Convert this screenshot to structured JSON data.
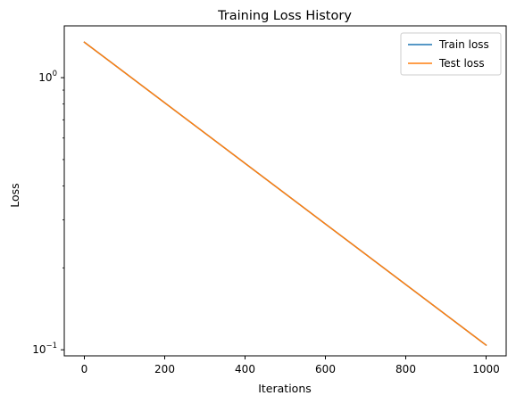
{
  "chart_data": {
    "type": "line",
    "title": "Training Loss History",
    "xlabel": "Iterations",
    "ylabel": "Loss",
    "y_scale": "log",
    "xlim": [
      -50,
      1050
    ],
    "ylim": [
      0.095,
      1.55
    ],
    "x_ticks": [
      0,
      200,
      400,
      600,
      800,
      1000
    ],
    "y_ticks": [
      {
        "value": 1.0,
        "label": "10",
        "exponent": "0"
      },
      {
        "value": 0.1,
        "label": "10",
        "exponent": "−1"
      }
    ],
    "grid": false,
    "legend_position": "top-right",
    "series": [
      {
        "name": "Train loss",
        "color": "#1f77b4",
        "x": [
          0,
          1000
        ],
        "values": [
          1.35,
          0.104
        ]
      },
      {
        "name": "Test loss",
        "color": "#ff7f0e",
        "x": [
          0,
          1000
        ],
        "values": [
          1.35,
          0.104
        ]
      }
    ]
  }
}
